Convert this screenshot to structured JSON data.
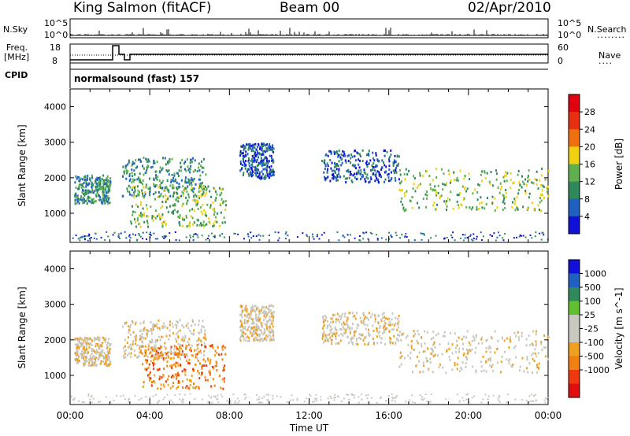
{
  "header": {
    "station": "King Salmon (fitACF)",
    "beam": "Beam 00",
    "date": "02/Apr/2010"
  },
  "top_panels": {
    "nsky_label": "N.Sky",
    "nsearch_label": "N.Search",
    "nsky_ticks": [
      "10^5",
      "10^0"
    ],
    "nsearch_ticks": [
      "10^5",
      "10^0"
    ],
    "freq_label_line1": "Freq.",
    "freq_label_line2": "[MHz]",
    "freq_ticks": [
      "18",
      "8"
    ],
    "nave_label": "Nave",
    "nave_ticks": [
      "60",
      "0"
    ],
    "cpid_label": "CPID",
    "cpid_text": "normalsound (fast) 157"
  },
  "colors": {
    "power_scale": [
      "#1010d8",
      "#2060c0",
      "#2e8a5a",
      "#60b050",
      "#f0d010",
      "#f07010",
      "#e83010",
      "#e00010"
    ],
    "velocity_scale": [
      "#e01010",
      "#f03810",
      "#f08010",
      "#f0a020",
      "#c8c8c0",
      "#c8c8c0",
      "#60c030",
      "#2e8a5a",
      "#2060c0",
      "#1010d8"
    ]
  },
  "chart_data": [
    {
      "type": "heatmap",
      "panel": "power",
      "ylabel": "Slant Range [km]",
      "ylim": [
        180,
        4500
      ],
      "yticks": [
        "1000",
        "2000",
        "3000",
        "4000"
      ],
      "xlim": [
        0,
        24
      ],
      "colorbar_label": "Power [dB]",
      "colorbar_ticks": [
        "4",
        "8",
        "12",
        "16",
        "20",
        "24",
        "28"
      ],
      "regions": [
        {
          "t0": 0.2,
          "t1": 2.0,
          "r0": 1300,
          "r1": 2100,
          "level": 2
        },
        {
          "t0": 2.6,
          "t1": 6.8,
          "r0": 1500,
          "r1": 2600,
          "level": 2
        },
        {
          "t0": 3.0,
          "t1": 7.8,
          "r0": 650,
          "r1": 1800,
          "level": 3
        },
        {
          "t0": 8.5,
          "t1": 10.2,
          "r0": 2000,
          "r1": 3000,
          "level": 1
        },
        {
          "t0": 12.6,
          "t1": 16.5,
          "r0": 1900,
          "r1": 2800,
          "level": 1
        },
        {
          "t0": 16.5,
          "t1": 24.0,
          "r0": 1100,
          "r1": 2300,
          "level": 3
        }
      ]
    },
    {
      "type": "heatmap",
      "panel": "velocity",
      "ylabel": "Slant Range [km]",
      "ylim": [
        180,
        4500
      ],
      "yticks": [
        "1000",
        "2000",
        "3000",
        "4000"
      ],
      "xlim": [
        0,
        24
      ],
      "xlabel": "Time UT",
      "xticks": [
        "00:00",
        "04:00",
        "08:00",
        "12:00",
        "16:00",
        "20:00",
        "00:00"
      ],
      "colorbar_label": "Velocity [m s^-1]",
      "colorbar_ticks": [
        "1000",
        "500",
        "100",
        "25",
        "-25",
        "-100",
        "-500",
        "-1000"
      ],
      "regions": [
        {
          "t0": 0.2,
          "t1": 2.0,
          "r0": 1300,
          "r1": 2100,
          "level": 4
        },
        {
          "t0": 2.6,
          "t1": 6.8,
          "r0": 1500,
          "r1": 2600,
          "level": 4
        },
        {
          "t0": 3.5,
          "t1": 7.8,
          "r0": 650,
          "r1": 1900,
          "level": 2
        },
        {
          "t0": 8.5,
          "t1": 10.2,
          "r0": 2000,
          "r1": 3000,
          "level": 4
        },
        {
          "t0": 12.6,
          "t1": 16.5,
          "r0": 1900,
          "r1": 2800,
          "level": 4
        },
        {
          "t0": 16.5,
          "t1": 24.0,
          "r0": 1100,
          "r1": 2300,
          "level": 4
        }
      ]
    }
  ]
}
